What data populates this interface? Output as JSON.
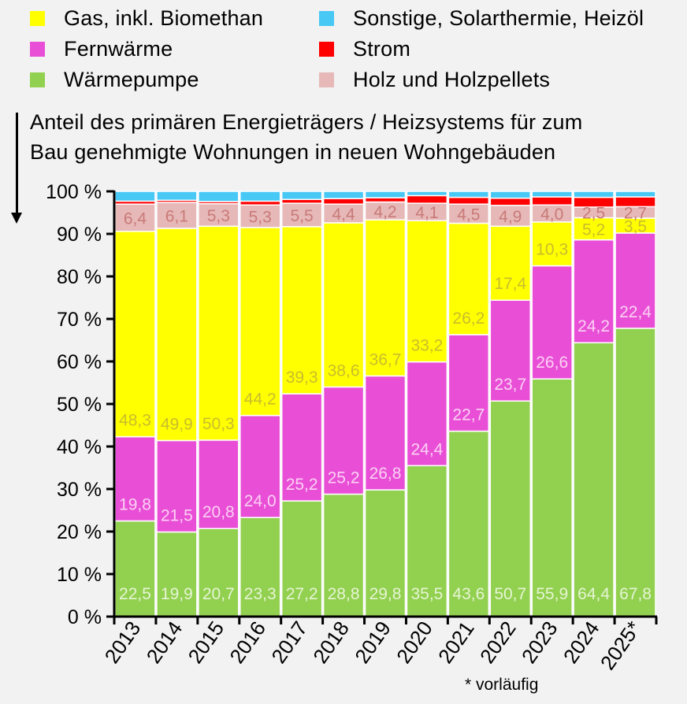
{
  "chart_data": {
    "type": "bar",
    "stacked": true,
    "title": "Anteil des primären Energieträgers / Heizsystems für zum Bau genehmigte Wohnungen in neuen Wohngebäuden",
    "subtitle_lines": [
      "Anteil des primären Energieträgers  / Heizsystems  für zum",
      "Bau genehmigte Wohnungen in neuen Wohngebäuden"
    ],
    "xlabel": "",
    "ylabel": "",
    "ylim": [
      0,
      100
    ],
    "yticks": [
      0,
      10,
      20,
      30,
      40,
      50,
      60,
      70,
      80,
      90,
      100
    ],
    "ytick_labels": [
      "0 %",
      "10 %",
      "20 %",
      "30 %",
      "40 %",
      "50 %",
      "60 %",
      "70 %",
      "80 %",
      "90 %",
      "100 %"
    ],
    "categories": [
      "2013",
      "2014",
      "2015",
      "2016",
      "2017",
      "2018",
      "2019",
      "2020",
      "2021",
      "2022",
      "2023",
      "2024",
      "2025*"
    ],
    "grid": false,
    "legend_position": "top",
    "series": [
      {
        "name": "Wärmepumpe",
        "color": "#92d050",
        "label_color": "#e6f5d3",
        "show_labels": true,
        "values": [
          22.5,
          19.9,
          20.7,
          23.3,
          27.2,
          28.8,
          29.8,
          35.5,
          43.6,
          50.7,
          55.9,
          64.4,
          67.8
        ]
      },
      {
        "name": "Fernwärme",
        "color": "#e94fd6",
        "label_color": "#fbd0f4",
        "show_labels": true,
        "values": [
          19.8,
          21.5,
          20.8,
          24.0,
          25.2,
          25.2,
          26.8,
          24.4,
          22.7,
          23.7,
          26.6,
          24.2,
          22.4
        ]
      },
      {
        "name": "Gas, inkl. Biomethan",
        "color": "#ffff00",
        "label_color": "#c9bd2c",
        "show_labels": true,
        "values": [
          48.3,
          49.9,
          50.3,
          44.2,
          39.3,
          38.6,
          36.7,
          33.2,
          26.2,
          17.4,
          10.3,
          5.2,
          3.5
        ]
      },
      {
        "name": "Holz und Holzpellets",
        "color": "#e6b8b7",
        "label_color": "#c87a78",
        "show_labels": true,
        "values": [
          6.4,
          6.1,
          5.3,
          5.3,
          5.5,
          4.4,
          4.2,
          4.1,
          4.5,
          4.9,
          4.0,
          2.5,
          2.7
        ]
      },
      {
        "name": "Strom",
        "color": "#ff0000",
        "label_color": "#ffffff",
        "show_labels": false,
        "values": [
          0.7,
          0.5,
          0.5,
          0.9,
          0.9,
          1.3,
          1.0,
          1.8,
          1.6,
          1.7,
          1.9,
          2.3,
          2.3
        ]
      },
      {
        "name": "Sonstige, Solarthermie, Heizöl",
        "color": "#47c8f5",
        "label_color": "#ffffff",
        "show_labels": false,
        "values": [
          2.3,
          2.1,
          2.4,
          2.3,
          1.9,
          1.7,
          1.5,
          1.0,
          1.4,
          1.6,
          1.3,
          1.4,
          1.3
        ]
      }
    ],
    "footnote": "* vorläufig"
  },
  "legend": {
    "items": [
      {
        "label": "Gas, inkl. Biomethan",
        "color": "#ffff00"
      },
      {
        "label": "Fernwärme",
        "color": "#e94fd6"
      },
      {
        "label": "Wärmepumpe",
        "color": "#92d050"
      },
      {
        "label": "Sonstige, Solarthermie, Heizöl",
        "color": "#47c8f5"
      },
      {
        "label": "Strom",
        "color": "#ff0000"
      },
      {
        "label": "Holz und Holzpellets",
        "color": "#e6b8b7"
      }
    ]
  }
}
